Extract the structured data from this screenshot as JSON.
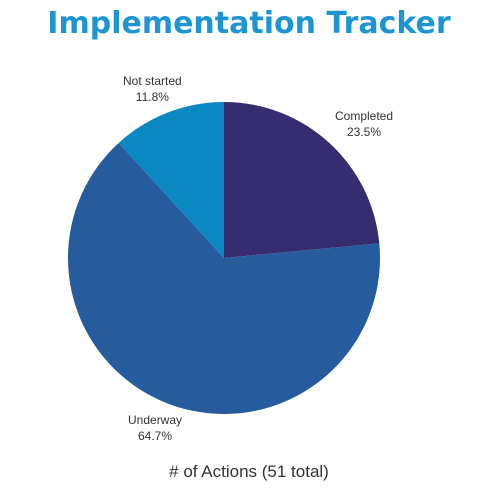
{
  "title": "Implementation Tracker",
  "chart_data": {
    "type": "pie",
    "title": "Implementation Tracker",
    "xlabel": "# of Actions (51 total)",
    "slices": [
      {
        "name": "Completed",
        "value": 23.5,
        "label": "23.5%",
        "color": "#352d6d"
      },
      {
        "name": "Underway",
        "value": 64.7,
        "label": "64.7%",
        "color": "#265c9e"
      },
      {
        "name": "Not started",
        "value": 11.8,
        "label": "11.8%",
        "color": "#0a88c1"
      }
    ]
  }
}
